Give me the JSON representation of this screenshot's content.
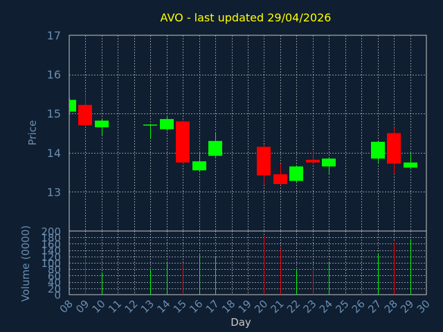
{
  "chart_data": {
    "type": "candlestick",
    "title": "AVO - last updated 29/04/2026",
    "xlabel": "Day",
    "ylabel_price": "Price",
    "ylabel_volume": "Volume (0000)",
    "x_range": [
      8,
      30
    ],
    "x_tick_labels": [
      "08",
      "09",
      "10",
      "11",
      "12",
      "13",
      "14",
      "15",
      "16",
      "17",
      "18",
      "19",
      "20",
      "21",
      "22",
      "23",
      "24",
      "25",
      "26",
      "27",
      "28",
      "29",
      "30"
    ],
    "price_ylim": [
      12.0,
      17.0
    ],
    "price_ticks": [
      "13",
      "14",
      "15",
      "16",
      "17"
    ],
    "price_tick_values": [
      13,
      14,
      15,
      16,
      17
    ],
    "volume_ylim": [
      0,
      200
    ],
    "volume_ticks": [
      "0",
      "20",
      "40",
      "60",
      "80",
      "100",
      "120",
      "140",
      "160",
      "180",
      "200"
    ],
    "volume_tick_values": [
      0,
      20,
      40,
      60,
      80,
      100,
      120,
      140,
      160,
      180,
      200
    ],
    "grid": true,
    "colors": {
      "background": "#0f1e30",
      "title": "#ffff00",
      "axis_text": "#6a8fb3",
      "up": "#00ff00",
      "down": "#ff0000",
      "frame": "#c8c8c8"
    },
    "candles": [
      {
        "day": 8,
        "open": 15.05,
        "close": 15.35,
        "high": 15.4,
        "low": 15.0,
        "volume": 0
      },
      {
        "day": 9,
        "open": 15.22,
        "close": 14.7,
        "high": 15.5,
        "low": 14.65,
        "volume": 115
      },
      {
        "day": 10,
        "open": 14.65,
        "close": 14.82,
        "high": 14.85,
        "low": 14.45,
        "volume": 70
      },
      {
        "day": 13,
        "open": 14.7,
        "close": 14.72,
        "high": 14.73,
        "low": 14.35,
        "volume": 80
      },
      {
        "day": 14,
        "open": 14.6,
        "close": 14.86,
        "high": 14.95,
        "low": 14.55,
        "volume": 100
      },
      {
        "day": 15,
        "open": 14.8,
        "close": 13.75,
        "high": 14.82,
        "low": 13.72,
        "volume": 100
      },
      {
        "day": 16,
        "open": 13.55,
        "close": 13.78,
        "high": 14.0,
        "low": 13.5,
        "volume": 125
      },
      {
        "day": 17,
        "open": 13.92,
        "close": 14.3,
        "high": 14.5,
        "low": 13.9,
        "volume": 118
      },
      {
        "day": 20,
        "open": 14.15,
        "close": 13.42,
        "high": 14.2,
        "low": 13.18,
        "volume": 185
      },
      {
        "day": 21,
        "open": 13.45,
        "close": 13.2,
        "high": 13.72,
        "low": 13.18,
        "volume": 145
      },
      {
        "day": 22,
        "open": 13.28,
        "close": 13.65,
        "high": 13.68,
        "low": 13.25,
        "volume": 80
      },
      {
        "day": 23,
        "open": 13.82,
        "close": 13.75,
        "high": 14.05,
        "low": 13.72,
        "volume": 80
      },
      {
        "day": 24,
        "open": 13.65,
        "close": 13.85,
        "high": 13.88,
        "low": 13.45,
        "volume": 100
      },
      {
        "day": 27,
        "open": 13.85,
        "close": 14.28,
        "high": 14.3,
        "low": 13.75,
        "volume": 130
      },
      {
        "day": 28,
        "open": 14.5,
        "close": 13.72,
        "high": 14.65,
        "low": 13.45,
        "volume": 165
      },
      {
        "day": 29,
        "open": 13.62,
        "close": 13.75,
        "high": 14.0,
        "low": 13.6,
        "volume": 175
      }
    ]
  }
}
